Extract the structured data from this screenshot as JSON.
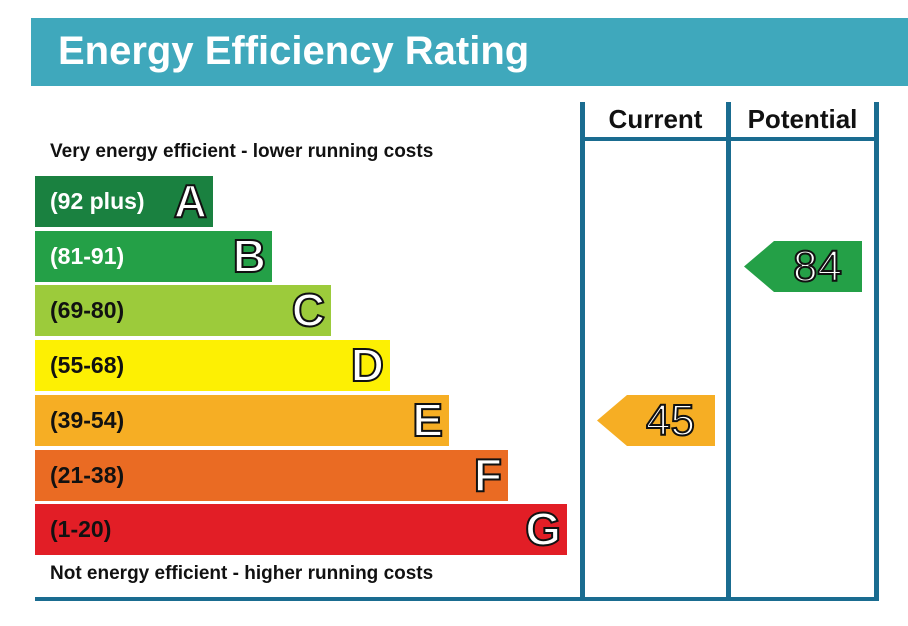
{
  "title": "Energy Efficiency Rating",
  "columns": {
    "current": "Current",
    "potential": "Potential"
  },
  "top_caption": "Very energy efficient - lower running costs",
  "bottom_caption": "Not energy efficient - higher running costs",
  "chart_data": {
    "type": "bar",
    "title": "Energy Efficiency Rating",
    "bands": [
      {
        "letter": "A",
        "range": "(92 plus)",
        "color": "#1a8140",
        "range_color": "#ffffff"
      },
      {
        "letter": "B",
        "range": "(81-91)",
        "color": "#24a047",
        "range_color": "#ffffff"
      },
      {
        "letter": "C",
        "range": "(69-80)",
        "color": "#9ccb3b",
        "range_color": "#111111"
      },
      {
        "letter": "D",
        "range": "(55-68)",
        "color": "#fdf003",
        "range_color": "#111111"
      },
      {
        "letter": "E",
        "range": "(39-54)",
        "color": "#f6ae24",
        "range_color": "#111111"
      },
      {
        "letter": "F",
        "range": "(21-38)",
        "color": "#ea6b23",
        "range_color": "#111111"
      },
      {
        "letter": "G",
        "range": "(1-20)",
        "color": "#e21e26",
        "range_color": "#111111"
      }
    ],
    "current": {
      "value": 45,
      "band": "E",
      "color": "#f6ae24"
    },
    "potential": {
      "value": 84,
      "band": "B",
      "color": "#24a047"
    }
  }
}
